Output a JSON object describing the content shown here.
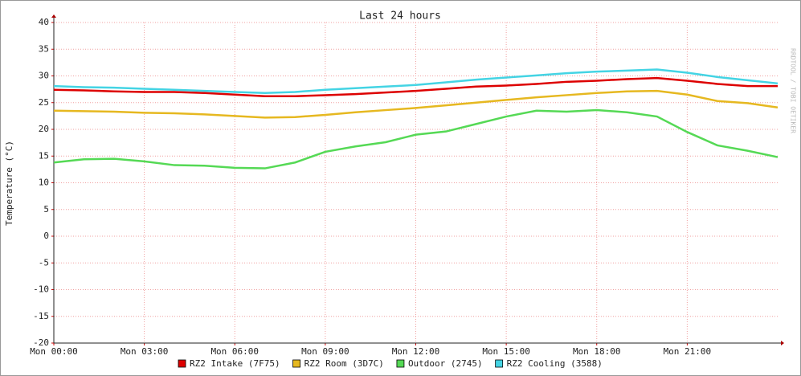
{
  "chart_data": {
    "type": "line",
    "title": "Last 24 hours",
    "watermark": "RRDTOOL / TOBI OETIKER",
    "ylabel": "Temperature (°C)",
    "x": [
      0,
      1,
      2,
      3,
      4,
      5,
      6,
      7,
      8,
      9,
      10,
      11,
      12,
      13,
      14,
      15,
      16,
      17,
      18,
      19,
      20,
      21,
      22,
      23,
      24
    ],
    "xlim": [
      0,
      24
    ],
    "xticks": [
      {
        "value": 0,
        "label": "Mon 00:00"
      },
      {
        "value": 3,
        "label": "Mon 03:00"
      },
      {
        "value": 6,
        "label": "Mon 06:00"
      },
      {
        "value": 9,
        "label": "Mon 09:00"
      },
      {
        "value": 12,
        "label": "Mon 12:00"
      },
      {
        "value": 15,
        "label": "Mon 15:00"
      },
      {
        "value": 18,
        "label": "Mon 18:00"
      },
      {
        "value": 21,
        "label": "Mon 21:00"
      }
    ],
    "ylim": [
      -20,
      40
    ],
    "yticks": [
      -20,
      -15,
      -10,
      -5,
      0,
      5,
      10,
      15,
      20,
      25,
      30,
      35,
      40
    ],
    "grid": true,
    "series": [
      {
        "name": "RZ2 Intake (7F75)",
        "color": "#dd0000",
        "values": [
          27.4,
          27.3,
          27.1,
          27,
          27,
          26.8,
          26.5,
          26.2,
          26.2,
          26.4,
          26.6,
          26.9,
          27.2,
          27.6,
          28,
          28.2,
          28.5,
          28.9,
          29.1,
          29.4,
          29.6,
          29.1,
          28.5,
          28.1,
          28.1
        ]
      },
      {
        "name": "RZ2 Room (3D7C)",
        "color": "#e6b820",
        "values": [
          23.5,
          23.4,
          23.3,
          23.1,
          23,
          22.8,
          22.5,
          22.2,
          22.3,
          22.7,
          23.2,
          23.6,
          24,
          24.5,
          25,
          25.5,
          26,
          26.4,
          26.8,
          27.1,
          27.2,
          26.5,
          25.3,
          24.9,
          24.1
        ]
      },
      {
        "name": "Outdoor (2745)",
        "color": "#55d955",
        "values": [
          13.8,
          14.4,
          14.5,
          14,
          13.3,
          13.2,
          12.8,
          12.7,
          13.8,
          15.8,
          16.8,
          17.6,
          19,
          19.6,
          21,
          22.4,
          23.5,
          23.3,
          23.6,
          23.2,
          22.4,
          19.5,
          17,
          16,
          14.8
        ]
      },
      {
        "name": "RZ2 Cooling (3588)",
        "color": "#44d4e4",
        "values": [
          28.1,
          27.9,
          27.8,
          27.6,
          27.4,
          27.2,
          27,
          26.8,
          27,
          27.4,
          27.7,
          28,
          28.3,
          28.8,
          29.3,
          29.7,
          30.1,
          30.5,
          30.8,
          31,
          31.2,
          30.6,
          29.8,
          29.2,
          28.6
        ]
      }
    ]
  }
}
